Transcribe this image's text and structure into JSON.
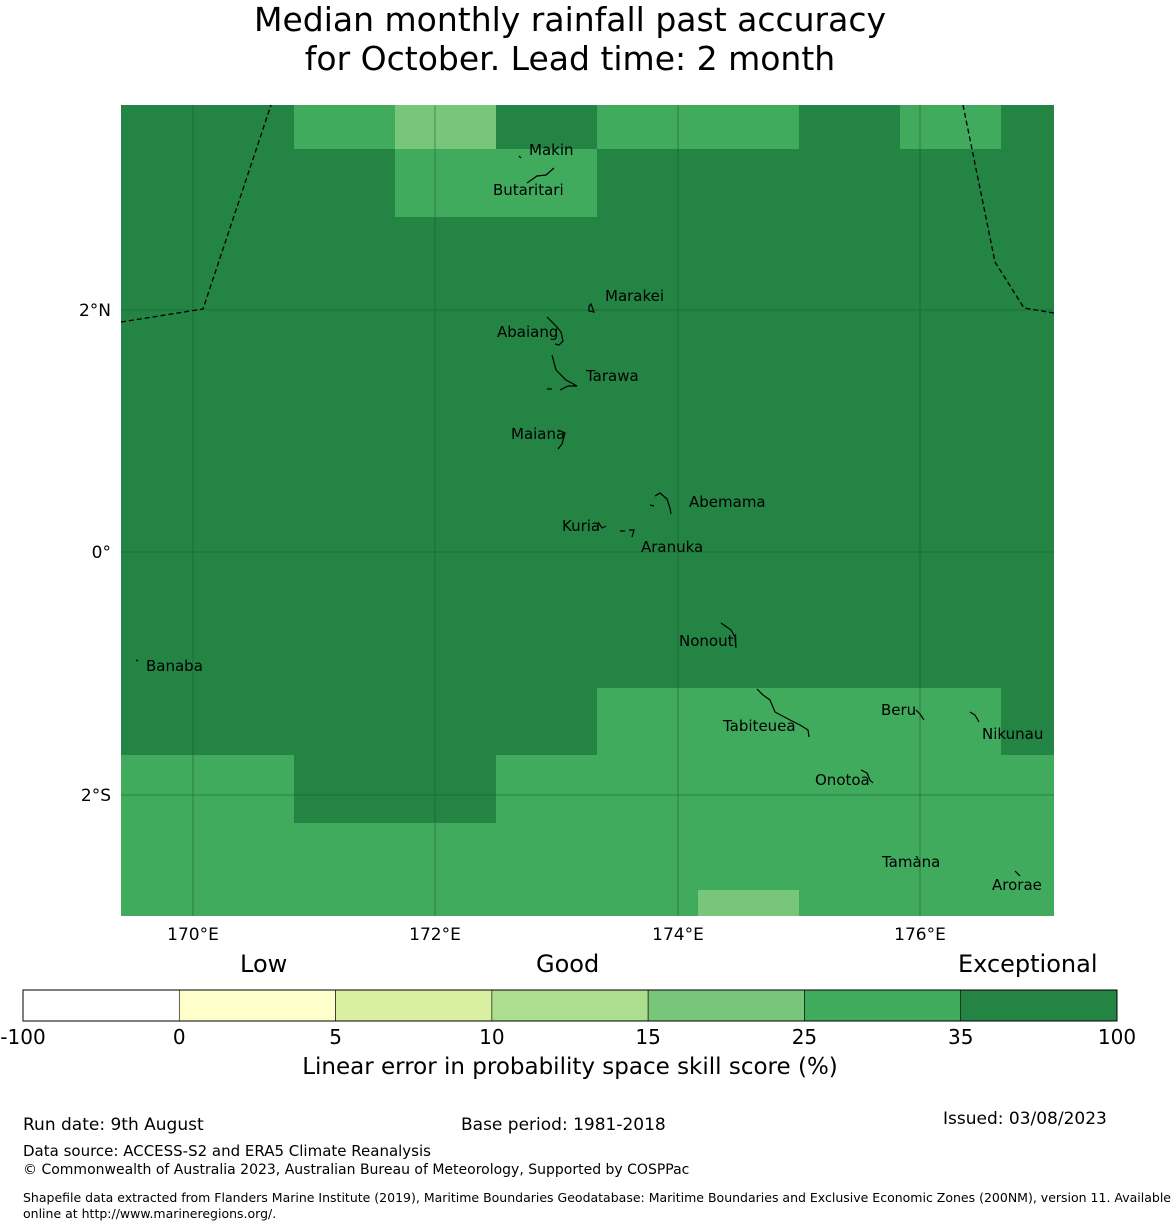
{
  "title_line1": "Median monthly rainfall past accuracy",
  "title_line2": "for October. Lead time: 2 month",
  "map": {
    "lon_range": [
      169.4,
      177.1
    ],
    "lat_range": [
      -3.0,
      3.7
    ],
    "x_ticks": [
      {
        "value": 170,
        "label": "170°E"
      },
      {
        "value": 172,
        "label": "172°E"
      },
      {
        "value": 174,
        "label": "174°E"
      },
      {
        "value": 176,
        "label": "176°E"
      }
    ],
    "y_ticks": [
      {
        "value": 2,
        "label": "2°N"
      },
      {
        "value": 0,
        "label": "0°"
      },
      {
        "value": -2,
        "label": "2°S"
      }
    ],
    "grid": true,
    "skill_cells_note_values": "category index per grid cell (0=-100..0, 1=0..5, 2=5..10, 3=10..15, 4=15..25, 5=25..35, 6=35..100)",
    "places": [
      {
        "name": "Makin",
        "lon": 172.98,
        "lat": 3.32
      },
      {
        "name": "Butaritari",
        "lon": 172.78,
        "lat": 3.0
      },
      {
        "name": "Marakei",
        "lon": 173.3,
        "lat": 2.03
      },
      {
        "name": "Abaiang",
        "lon": 172.95,
        "lat": 1.85
      },
      {
        "name": "Tarawa",
        "lon": 173.08,
        "lat": 1.43
      },
      {
        "name": "Maiana",
        "lon": 172.98,
        "lat": 0.95
      },
      {
        "name": "Abemama",
        "lon": 173.85,
        "lat": 0.4
      },
      {
        "name": "Kuria",
        "lon": 173.4,
        "lat": 0.23
      },
      {
        "name": "Aranuka",
        "lon": 173.6,
        "lat": 0.18
      },
      {
        "name": "Nonouti",
        "lon": 174.45,
        "lat": -0.65
      },
      {
        "name": "Banaba",
        "lon": 169.53,
        "lat": -0.88
      },
      {
        "name": "Tabiteuea",
        "lon": 174.8,
        "lat": -1.35
      },
      {
        "name": "Beru",
        "lon": 176.0,
        "lat": -1.33
      },
      {
        "name": "Nikunau",
        "lon": 176.45,
        "lat": -1.38
      },
      {
        "name": "Onotoa",
        "lon": 175.57,
        "lat": -1.8
      },
      {
        "name": "Tamana",
        "lon": 175.98,
        "lat": -2.5
      },
      {
        "name": "Arorae",
        "lon": 176.82,
        "lat": -2.65
      }
    ]
  },
  "colorbar": {
    "category_labels": [
      "Low",
      "Good",
      "Exceptional"
    ],
    "ticks": [
      "-100",
      "0",
      "5",
      "10",
      "15",
      "25",
      "35",
      "100"
    ],
    "colors": [
      "#ffffff",
      "#ffffcc",
      "#d9f0a3",
      "#addd8e",
      "#78c679",
      "#41ab5d",
      "#238443"
    ],
    "label": "Linear error in probability space skill score (%)"
  },
  "footer": {
    "run_date": "Run date: 9th August",
    "base_period": "Base period: 1981-2018",
    "issued": "Issued: 03/08/2023",
    "data_source": "Data source: ACCESS-S2 and ERA5 Climate Reanalysis",
    "copyright": "© Commonwealth of Australia 2023, Australian Bureau of Meteorology, Supported by COSPPac",
    "shapefile_line1": "Shapefile data extracted from Flanders Marine Institute (2019), Maritime Boundaries Geodatabase: Maritime Boundaries and Exclusive Economic Zones (200NM), version 11. Available",
    "shapefile_line2": "online at http://www.marineregions.org/."
  }
}
